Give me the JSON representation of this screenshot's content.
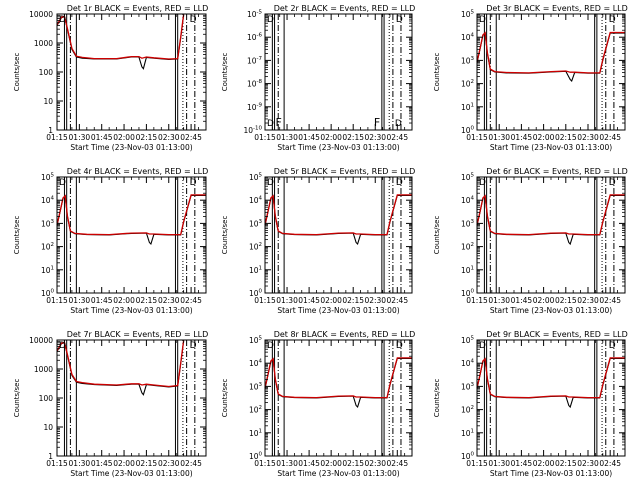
{
  "x_axis": {
    "tick_labels": [
      "01:15",
      "01:30",
      "01:45",
      "02:00",
      "02:15",
      "02:30",
      "02:45"
    ],
    "tick_minutes": [
      75,
      90,
      105,
      120,
      135,
      150,
      165
    ],
    "xlim": [
      75,
      175
    ],
    "label": "Start Time (23-Nov-03 01:13:00)"
  },
  "marker_lines": {
    "solid_minutes": [
      80,
      81.5,
      88,
      154.5,
      156
    ],
    "dashdot_minutes": [
      84,
      162,
      167.5
    ],
    "dotted_minutes": [
      159.5
    ]
  },
  "colors": {
    "events": "#000000",
    "lld": "#cc0000"
  },
  "chart_data": [
    {
      "type": "line",
      "title": "Det 1r BLACK = Events, RED = LLD",
      "ylabel": "Counts/sec",
      "yscale": "log",
      "ylim": [
        1,
        10000
      ],
      "ytick_values": [
        1,
        10,
        100,
        1000,
        10000
      ],
      "ytick_labels": [
        "1",
        "10",
        "100",
        "1000",
        "10000"
      ],
      "annotations": {
        "left": "D",
        "right": "D"
      },
      "series": [
        {
          "name": "Events",
          "color": "#000000",
          "x": [
            75,
            78,
            80,
            82,
            85,
            88,
            92,
            100,
            115,
            125,
            130,
            132,
            133,
            135,
            140,
            150,
            156,
            158,
            160
          ],
          "y": [
            4000,
            7500,
            8000,
            3000,
            600,
            330,
            300,
            280,
            280,
            330,
            330,
            150,
            130,
            320,
            300,
            270,
            280,
            1500,
            9000
          ]
        },
        {
          "name": "LLD",
          "color": "#cc0000",
          "x": [
            75,
            78,
            80,
            82,
            85,
            88,
            92,
            100,
            115,
            125,
            130,
            132,
            135,
            140,
            150,
            156,
            158,
            160
          ],
          "y": [
            4200,
            7800,
            8200,
            3200,
            650,
            350,
            320,
            290,
            290,
            340,
            340,
            300,
            330,
            310,
            280,
            290,
            1600,
            9500
          ]
        }
      ]
    },
    {
      "type": "line",
      "title": "Det 2r BLACK = Events, RED = LLD",
      "ylabel": "Counts/sec",
      "yscale": "log",
      "ylim": [
        1e-10,
        1e-05
      ],
      "ytick_values": [
        1e-10,
        1e-09,
        1e-08,
        1e-07,
        1e-06,
        1e-05
      ],
      "ytick_labels": [
        "10",
        "10",
        "10",
        "10",
        "10",
        "10"
      ],
      "ytick_exponents": [
        "-10",
        "-9",
        "-8",
        "-7",
        "-6",
        "-5"
      ],
      "annotations": {
        "left": "D",
        "right": "D",
        "left_inner": "F",
        "right_inner": "F"
      },
      "series": []
    },
    {
      "type": "line",
      "title": "Det 3r BLACK = Events, RED = LLD",
      "ylabel": "Counts/sec",
      "yscale": "log",
      "ylim": [
        1,
        100000
      ],
      "ytick_values": [
        1,
        10,
        100,
        1000,
        10000,
        100000
      ],
      "ytick_labels": [
        "10",
        "10",
        "10",
        "10",
        "10",
        "10"
      ],
      "ytick_exponents": [
        "0",
        "1",
        "2",
        "3",
        "4",
        "5"
      ],
      "annotations": {
        "left": "D",
        "right": "D"
      },
      "series": [
        {
          "name": "Events",
          "color": "#000000",
          "x": [
            75,
            77,
            79,
            80.5,
            82,
            84,
            87,
            95,
            110,
            125,
            135,
            138,
            139,
            141,
            150,
            158,
            160,
            165,
            175
          ],
          "y": [
            800,
            3000,
            12000,
            15000,
            2000,
            400,
            320,
            290,
            280,
            320,
            340,
            150,
            130,
            300,
            280,
            280,
            1000,
            15000,
            15000
          ]
        },
        {
          "name": "LLD",
          "color": "#cc0000",
          "x": [
            75,
            77,
            79,
            80.5,
            82,
            84,
            87,
            95,
            110,
            125,
            135,
            138,
            141,
            150,
            158,
            160,
            165,
            175
          ],
          "y": [
            850,
            3200,
            12500,
            15500,
            2100,
            420,
            330,
            300,
            290,
            330,
            350,
            310,
            310,
            290,
            290,
            1100,
            16000,
            16000
          ]
        }
      ]
    },
    {
      "type": "line",
      "title": "Det 4r BLACK = Events, RED = LLD",
      "ylabel": "Counts/sec",
      "yscale": "log",
      "ylim": [
        1,
        100000
      ],
      "ytick_values": [
        1,
        10,
        100,
        1000,
        10000,
        100000
      ],
      "ytick_labels": [
        "10",
        "10",
        "10",
        "10",
        "10",
        "10"
      ],
      "ytick_exponents": [
        "0",
        "1",
        "2",
        "3",
        "4",
        "5"
      ],
      "annotations": {
        "left": "D",
        "right": "D"
      },
      "series": [
        {
          "name": "Events",
          "color": "#000000",
          "x": [
            75,
            77,
            79,
            80.5,
            82,
            84,
            87,
            95,
            110,
            125,
            135,
            137,
            138,
            140,
            150,
            158,
            160,
            165,
            175
          ],
          "y": [
            800,
            3000,
            12000,
            15000,
            2000,
            450,
            360,
            330,
            320,
            370,
            380,
            150,
            130,
            340,
            320,
            320,
            1100,
            16000,
            16000
          ]
        },
        {
          "name": "LLD",
          "color": "#cc0000",
          "x": [
            75,
            77,
            79,
            80.5,
            82,
            84,
            87,
            95,
            110,
            125,
            135,
            137,
            140,
            150,
            158,
            160,
            165,
            175
          ],
          "y": [
            850,
            3200,
            12500,
            15500,
            2100,
            470,
            370,
            340,
            330,
            380,
            390,
            350,
            350,
            330,
            330,
            1200,
            17000,
            17000
          ]
        }
      ]
    },
    {
      "type": "line",
      "title": "Det 5r BLACK = Events, RED = LLD",
      "ylabel": "Counts/sec",
      "yscale": "log",
      "ylim": [
        1,
        100000
      ],
      "ytick_values": [
        1,
        10,
        100,
        1000,
        10000,
        100000
      ],
      "ytick_labels": [
        "10",
        "10",
        "10",
        "10",
        "10",
        "10"
      ],
      "ytick_exponents": [
        "0",
        "1",
        "2",
        "3",
        "4",
        "5"
      ],
      "annotations": {
        "left": "D",
        "right": "D"
      },
      "series": [
        {
          "name": "Events",
          "color": "#000000",
          "x": [
            75,
            77,
            79,
            80.5,
            82,
            84,
            87,
            95,
            110,
            125,
            135,
            137,
            138,
            140,
            150,
            158,
            160,
            165,
            175
          ],
          "y": [
            800,
            3000,
            12000,
            15000,
            2000,
            450,
            360,
            330,
            320,
            370,
            380,
            150,
            130,
            340,
            320,
            320,
            1100,
            16000,
            16000
          ]
        },
        {
          "name": "LLD",
          "color": "#cc0000",
          "x": [
            75,
            77,
            79,
            80.5,
            82,
            84,
            87,
            95,
            110,
            125,
            135,
            137,
            140,
            150,
            158,
            160,
            165,
            175
          ],
          "y": [
            850,
            3200,
            12500,
            15500,
            2100,
            470,
            370,
            340,
            330,
            380,
            390,
            350,
            350,
            330,
            330,
            1200,
            17000,
            17000
          ]
        }
      ]
    },
    {
      "type": "line",
      "title": "Det 6r BLACK = Events, RED = LLD",
      "ylabel": "Counts/sec",
      "yscale": "log",
      "ylim": [
        1,
        100000
      ],
      "ytick_values": [
        1,
        10,
        100,
        1000,
        10000,
        100000
      ],
      "ytick_labels": [
        "10",
        "10",
        "10",
        "10",
        "10",
        "10"
      ],
      "ytick_exponents": [
        "0",
        "1",
        "2",
        "3",
        "4",
        "5"
      ],
      "annotations": {
        "left": "D",
        "right": "D"
      },
      "series": [
        {
          "name": "Events",
          "color": "#000000",
          "x": [
            75,
            77,
            79,
            80.5,
            82,
            84,
            87,
            95,
            110,
            125,
            135,
            137,
            138,
            140,
            150,
            158,
            160,
            165,
            175
          ],
          "y": [
            800,
            3000,
            12000,
            15000,
            2000,
            450,
            360,
            330,
            320,
            370,
            380,
            150,
            130,
            340,
            320,
            320,
            1100,
            16000,
            16000
          ]
        },
        {
          "name": "LLD",
          "color": "#cc0000",
          "x": [
            75,
            77,
            79,
            80.5,
            82,
            84,
            87,
            95,
            110,
            125,
            135,
            137,
            140,
            150,
            158,
            160,
            165,
            175
          ],
          "y": [
            850,
            3200,
            12500,
            15500,
            2100,
            470,
            370,
            340,
            330,
            380,
            390,
            350,
            350,
            330,
            330,
            1200,
            17000,
            17000
          ]
        }
      ]
    },
    {
      "type": "line",
      "title": "Det 7r BLACK = Events, RED = LLD",
      "ylabel": "Counts/sec",
      "yscale": "log",
      "ylim": [
        1,
        10000
      ],
      "ytick_values": [
        1,
        10,
        100,
        1000,
        10000
      ],
      "ytick_labels": [
        "1",
        "10",
        "100",
        "1000",
        "10000"
      ],
      "annotations": {
        "left": "D",
        "right": "D"
      },
      "series": [
        {
          "name": "Events",
          "color": "#000000",
          "x": [
            75,
            78,
            80,
            82,
            85,
            88,
            92,
            100,
            115,
            125,
            130,
            132,
            133,
            135,
            140,
            150,
            156,
            158,
            160
          ],
          "y": [
            4000,
            7500,
            8000,
            3000,
            600,
            350,
            320,
            290,
            270,
            300,
            300,
            150,
            130,
            290,
            270,
            240,
            260,
            1500,
            9000
          ]
        },
        {
          "name": "LLD",
          "color": "#cc0000",
          "x": [
            75,
            78,
            80,
            82,
            85,
            88,
            92,
            100,
            115,
            125,
            130,
            132,
            135,
            140,
            150,
            156,
            158,
            160
          ],
          "y": [
            4200,
            7800,
            8200,
            3200,
            650,
            370,
            340,
            300,
            280,
            310,
            310,
            280,
            300,
            280,
            250,
            270,
            1600,
            9500
          ]
        }
      ]
    },
    {
      "type": "line",
      "title": "Det 8r BLACK = Events, RED = LLD",
      "ylabel": "Counts/sec",
      "yscale": "log",
      "ylim": [
        1,
        100000
      ],
      "ytick_values": [
        1,
        10,
        100,
        1000,
        10000,
        100000
      ],
      "ytick_labels": [
        "10",
        "10",
        "10",
        "10",
        "10",
        "10"
      ],
      "ytick_exponents": [
        "0",
        "1",
        "2",
        "3",
        "4",
        "5"
      ],
      "annotations": {
        "left": "D",
        "right": "D"
      },
      "series": [
        {
          "name": "Events",
          "color": "#000000",
          "x": [
            75,
            77,
            79,
            80.5,
            82,
            84,
            87,
            95,
            110,
            125,
            135,
            137,
            138,
            140,
            150,
            158,
            160,
            165,
            175
          ],
          "y": [
            800,
            3000,
            12000,
            15000,
            2000,
            450,
            360,
            330,
            320,
            370,
            380,
            150,
            130,
            340,
            320,
            320,
            1100,
            16000,
            16000
          ]
        },
        {
          "name": "LLD",
          "color": "#cc0000",
          "x": [
            75,
            77,
            79,
            80.5,
            82,
            84,
            87,
            95,
            110,
            125,
            135,
            137,
            140,
            150,
            158,
            160,
            165,
            175
          ],
          "y": [
            850,
            3200,
            12500,
            15500,
            2100,
            470,
            370,
            340,
            330,
            380,
            390,
            350,
            350,
            330,
            330,
            1200,
            17000,
            17000
          ]
        }
      ]
    },
    {
      "type": "line",
      "title": "Det 9r BLACK = Events, RED = LLD",
      "ylabel": "Counts/sec",
      "yscale": "log",
      "ylim": [
        1,
        100000
      ],
      "ytick_values": [
        1,
        10,
        100,
        1000,
        10000,
        100000
      ],
      "ytick_labels": [
        "10",
        "10",
        "10",
        "10",
        "10",
        "10"
      ],
      "ytick_exponents": [
        "0",
        "1",
        "2",
        "3",
        "4",
        "5"
      ],
      "annotations": {
        "left": "D",
        "right": "D"
      },
      "series": [
        {
          "name": "Events",
          "color": "#000000",
          "x": [
            75,
            77,
            79,
            80.5,
            82,
            84,
            87,
            95,
            110,
            125,
            135,
            137,
            138,
            140,
            150,
            158,
            160,
            165,
            175
          ],
          "y": [
            800,
            3000,
            12000,
            15000,
            2000,
            450,
            360,
            330,
            320,
            370,
            380,
            150,
            130,
            340,
            320,
            320,
            1100,
            16000,
            16000
          ]
        },
        {
          "name": "LLD",
          "color": "#cc0000",
          "x": [
            75,
            77,
            79,
            80.5,
            82,
            84,
            87,
            95,
            110,
            125,
            135,
            137,
            140,
            150,
            158,
            160,
            165,
            175
          ],
          "y": [
            850,
            3200,
            12500,
            15500,
            2100,
            470,
            370,
            340,
            330,
            380,
            390,
            350,
            350,
            330,
            330,
            1200,
            17000,
            17000
          ]
        }
      ]
    }
  ]
}
